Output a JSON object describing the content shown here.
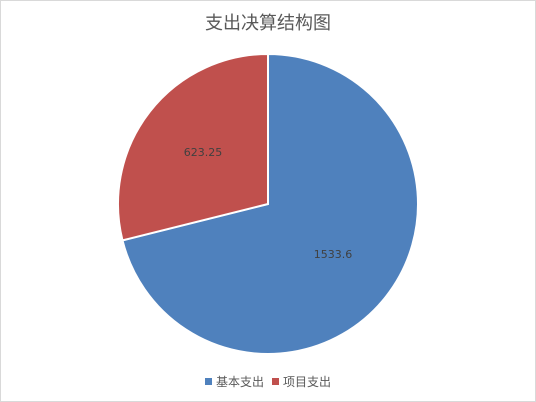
{
  "chart_data": {
    "type": "pie",
    "title": "支出决算结构图",
    "categories": [
      "基本支出",
      "项目支出"
    ],
    "values": [
      1533.6,
      623.25
    ],
    "data_labels": [
      "1533.6",
      "623.25"
    ],
    "colors": [
      "#4f81bd",
      "#c0504d"
    ],
    "legend_position": "bottom",
    "start_angle": "top",
    "direction": "clockwise"
  }
}
